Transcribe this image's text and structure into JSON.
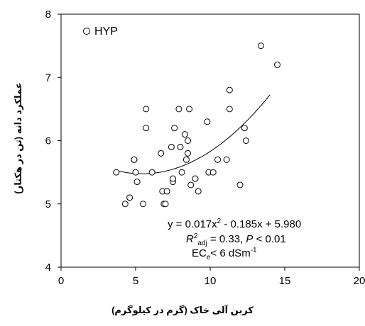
{
  "chart_data": {
    "type": "scatter",
    "xlabel": "کربن آلی خاک (گرم در کیلوگرم)",
    "ylabel": "عملکرد دانه (تن در هکتار)",
    "xlim": [
      0,
      20
    ],
    "ylim": [
      4,
      8
    ],
    "x_ticks": [
      "0",
      "5",
      "10",
      "15",
      "20"
    ],
    "y_ticks": [
      "4",
      "5",
      "6",
      "7",
      "8"
    ],
    "grid": false,
    "legend": {
      "label": "HYP",
      "placement": "top-left"
    },
    "series": [
      {
        "name": "HYP",
        "marker": "open-circle",
        "points": [
          [
            3.7,
            5.5
          ],
          [
            4.3,
            5.0
          ],
          [
            4.6,
            5.1
          ],
          [
            4.9,
            5.7
          ],
          [
            4.9,
            5.7
          ],
          [
            5.0,
            5.5
          ],
          [
            5.1,
            5.35
          ],
          [
            5.5,
            5.0
          ],
          [
            5.7,
            6.5
          ],
          [
            5.7,
            6.2
          ],
          [
            6.1,
            5.5
          ],
          [
            6.7,
            5.8
          ],
          [
            6.8,
            5.2
          ],
          [
            6.9,
            5.0
          ],
          [
            7.0,
            5.0
          ],
          [
            7.1,
            5.2
          ],
          [
            7.4,
            5.9
          ],
          [
            7.5,
            5.35
          ],
          [
            7.5,
            5.4
          ],
          [
            7.6,
            6.2
          ],
          [
            7.9,
            6.5
          ],
          [
            8.0,
            5.9
          ],
          [
            8.1,
            5.5
          ],
          [
            8.3,
            6.1
          ],
          [
            8.4,
            5.7
          ],
          [
            8.5,
            6.0
          ],
          [
            8.5,
            5.8
          ],
          [
            8.6,
            6.5
          ],
          [
            8.7,
            5.3
          ],
          [
            9.0,
            5.4
          ],
          [
            9.2,
            5.2
          ],
          [
            9.8,
            6.3
          ],
          [
            9.9,
            5.5
          ],
          [
            10.2,
            5.5
          ],
          [
            10.5,
            5.7
          ],
          [
            11.1,
            5.7
          ],
          [
            11.3,
            6.8
          ],
          [
            11.3,
            6.5
          ],
          [
            12.0,
            5.3
          ],
          [
            12.3,
            6.2
          ],
          [
            12.4,
            6.0
          ],
          [
            13.4,
            7.5
          ],
          [
            14.5,
            7.2
          ]
        ]
      }
    ],
    "fit": {
      "type": "polynomial",
      "coefficients": {
        "a": 0.017,
        "b": -0.185,
        "c": 5.98
      },
      "x_range": [
        3.7,
        14.0
      ]
    },
    "annotations": {
      "equation": {
        "prefix": "y = 0.017x",
        "sup": "2",
        "suffix": " - 0.185x + 5.980"
      },
      "r2": {
        "r": "R",
        "sup": "2",
        "sub": "adj",
        "mid": " = 0.33, ",
        "p": "P",
        "end": " < 0.01"
      },
      "ece": {
        "base": "EC",
        "sub": "e",
        "mid": "< 6 dSm",
        "sup": "-1"
      }
    }
  }
}
